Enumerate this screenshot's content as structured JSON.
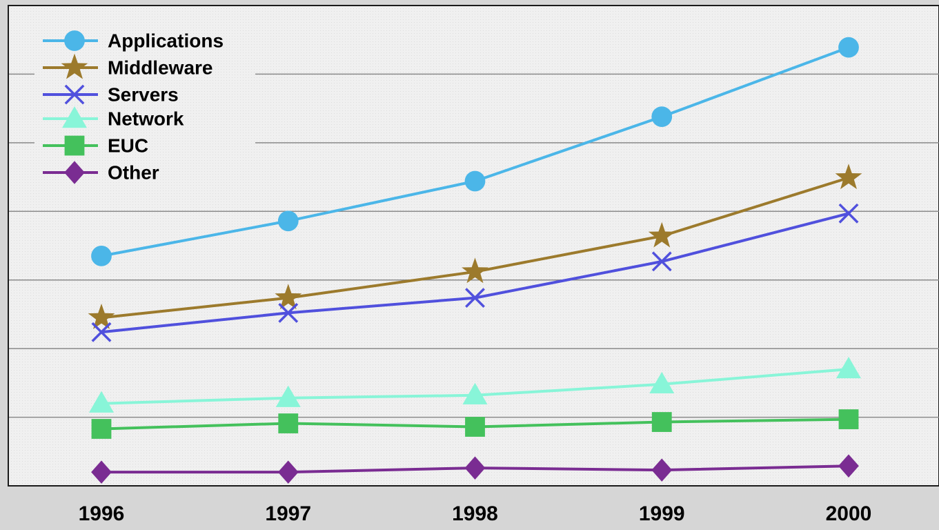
{
  "chart_data": {
    "type": "line",
    "title": "",
    "xlabel": "",
    "ylabel": "",
    "categories": [
      "1996",
      "1997",
      "1998",
      "1999",
      "2000"
    ],
    "ylim": [
      0,
      7
    ],
    "y_ticks": [
      1,
      2,
      3,
      4,
      5,
      6
    ],
    "y_tick_labels_shown": false,
    "grid": "horizontal",
    "legend_position": "top-left",
    "series": [
      {
        "name": "Applications",
        "color": "#4bb6e8",
        "marker": "circle",
        "values": [
          3.35,
          3.86,
          4.44,
          5.38,
          6.39
        ]
      },
      {
        "name": "Middleware",
        "color": "#9c7a2c",
        "marker": "star",
        "values": [
          2.45,
          2.74,
          3.12,
          3.64,
          4.49
        ]
      },
      {
        "name": "Servers",
        "color": "#5050dd",
        "marker": "x",
        "values": [
          2.24,
          2.52,
          2.74,
          3.27,
          3.97
        ]
      },
      {
        "name": "Network",
        "color": "#88f5d8",
        "marker": "triangle",
        "values": [
          1.2,
          1.28,
          1.32,
          1.48,
          1.7
        ]
      },
      {
        "name": "EUC",
        "color": "#44c15c",
        "marker": "square",
        "values": [
          0.83,
          0.91,
          0.86,
          0.93,
          0.97
        ]
      },
      {
        "name": "Other",
        "color": "#7a2c92",
        "marker": "diamond",
        "values": [
          0.2,
          0.2,
          0.26,
          0.23,
          0.29
        ]
      }
    ]
  }
}
